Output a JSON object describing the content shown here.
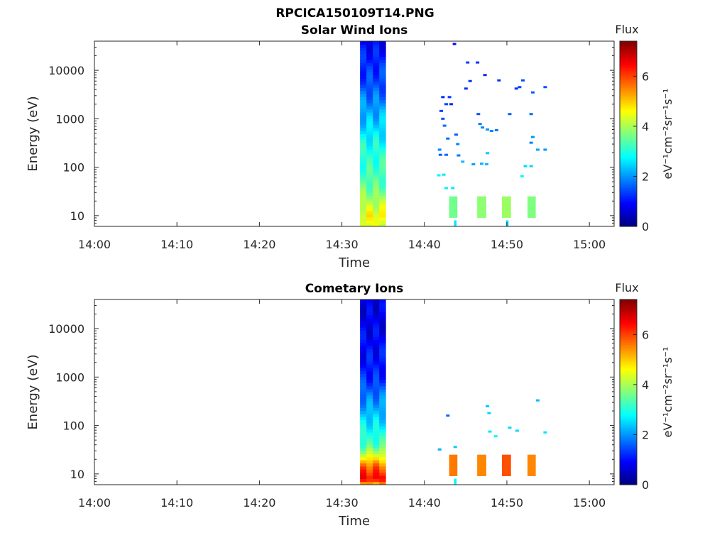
{
  "figure_title": "RPCICA150109T14.PNG",
  "colormap": [
    "#00007f",
    "#0000ff",
    "#007fff",
    "#00ffff",
    "#7fff7f",
    "#ffff00",
    "#ff7f00",
    "#ff0000",
    "#7f0000"
  ],
  "chart_data": [
    {
      "type": "heatmap",
      "title": "Solar Wind Ions",
      "xlabel": "Time",
      "ylabel": "Energy (eV)",
      "xticks": [
        "14:00",
        "14:10",
        "14:20",
        "14:30",
        "14:40",
        "14:50",
        "15:00"
      ],
      "xlim_minutes": [
        0,
        63
      ],
      "yscale": "log",
      "ylim": [
        6,
        40000
      ],
      "yticks": [
        10,
        100,
        1000,
        10000
      ],
      "ytick_labels": [
        "10",
        "100",
        "1000",
        "10000"
      ],
      "colorbar": {
        "label": "Flux",
        "units": "eV⁻¹cm⁻²sr⁻¹s⁻¹",
        "range": [
          0,
          7.4
        ],
        "ticks": [
          0,
          2,
          4,
          6
        ],
        "tick_labels": [
          "0",
          "2",
          "4",
          "6"
        ]
      },
      "cells": [
        {
          "t0": 32.2,
          "t1": 35.3,
          "e0": 6,
          "e1": 40000,
          "flux_profile": [
            [
              40000,
              0.9
            ],
            [
              5000,
              1.5
            ],
            [
              1000,
              2.3
            ],
            [
              300,
              2.9
            ],
            [
              100,
              3.2
            ],
            [
              40,
              3.5
            ],
            [
              20,
              4.0
            ],
            [
              10,
              4.6
            ],
            [
              6,
              4.4
            ]
          ]
        },
        {
          "t0": 43.0,
          "t1": 44.0,
          "e0": 9,
          "e1": 25,
          "flux": 3.6
        },
        {
          "t0": 46.4,
          "t1": 47.5,
          "e0": 9,
          "e1": 25,
          "flux": 3.8
        },
        {
          "t0": 49.4,
          "t1": 50.5,
          "e0": 9,
          "e1": 25,
          "flux": 3.9
        },
        {
          "t0": 52.5,
          "t1": 53.5,
          "e0": 9,
          "e1": 25,
          "flux": 3.7
        },
        {
          "t0": 43.6,
          "t1": 43.9,
          "e0": 6,
          "e1": 8,
          "flux": 2.6
        },
        {
          "t0": 49.9,
          "t1": 50.2,
          "e0": 6,
          "e1": 8,
          "flux": 2.6
        }
      ],
      "points": [
        {
          "t": 43.6,
          "e": 35000,
          "flux": 1.0
        },
        {
          "t": 45.2,
          "e": 14500,
          "flux": 1.4
        },
        {
          "t": 46.4,
          "e": 14500,
          "flux": 1.3
        },
        {
          "t": 47.3,
          "e": 8000,
          "flux": 1.2
        },
        {
          "t": 45.5,
          "e": 6000,
          "flux": 1.3
        },
        {
          "t": 49.0,
          "e": 6200,
          "flux": 1.3
        },
        {
          "t": 51.9,
          "e": 6200,
          "flux": 1.5
        },
        {
          "t": 51.5,
          "e": 4500,
          "flux": 1.4
        },
        {
          "t": 54.6,
          "e": 4500,
          "flux": 1.5
        },
        {
          "t": 45.0,
          "e": 4200,
          "flux": 1.3
        },
        {
          "t": 51.1,
          "e": 4200,
          "flux": 1.3
        },
        {
          "t": 53.1,
          "e": 3500,
          "flux": 1.6
        },
        {
          "t": 42.2,
          "e": 2800,
          "flux": 1.2
        },
        {
          "t": 43.0,
          "e": 2800,
          "flux": 1.3
        },
        {
          "t": 42.6,
          "e": 2000,
          "flux": 1.4
        },
        {
          "t": 43.2,
          "e": 2000,
          "flux": 1.2
        },
        {
          "t": 42.0,
          "e": 1450,
          "flux": 1.4
        },
        {
          "t": 46.5,
          "e": 1250,
          "flux": 1.5
        },
        {
          "t": 50.3,
          "e": 1250,
          "flux": 1.6
        },
        {
          "t": 52.9,
          "e": 1250,
          "flux": 1.7
        },
        {
          "t": 42.2,
          "e": 1000,
          "flux": 1.5
        },
        {
          "t": 46.7,
          "e": 780,
          "flux": 1.8
        },
        {
          "t": 42.4,
          "e": 720,
          "flux": 1.7
        },
        {
          "t": 47.0,
          "e": 660,
          "flux": 1.9
        },
        {
          "t": 47.6,
          "e": 600,
          "flux": 2.0
        },
        {
          "t": 48.1,
          "e": 560,
          "flux": 1.9
        },
        {
          "t": 48.7,
          "e": 580,
          "flux": 1.8
        },
        {
          "t": 43.8,
          "e": 470,
          "flux": 1.6
        },
        {
          "t": 42.8,
          "e": 390,
          "flux": 1.7
        },
        {
          "t": 53.1,
          "e": 420,
          "flux": 2.0
        },
        {
          "t": 52.9,
          "e": 320,
          "flux": 1.9
        },
        {
          "t": 44.0,
          "e": 300,
          "flux": 1.9
        },
        {
          "t": 41.8,
          "e": 230,
          "flux": 1.9
        },
        {
          "t": 53.7,
          "e": 230,
          "flux": 2.1
        },
        {
          "t": 54.6,
          "e": 230,
          "flux": 2.0
        },
        {
          "t": 41.9,
          "e": 180,
          "flux": 1.6
        },
        {
          "t": 42.6,
          "e": 180,
          "flux": 1.7
        },
        {
          "t": 44.1,
          "e": 175,
          "flux": 1.8
        },
        {
          "t": 47.6,
          "e": 195,
          "flux": 2.4
        },
        {
          "t": 44.6,
          "e": 130,
          "flux": 2.3
        },
        {
          "t": 45.9,
          "e": 115,
          "flux": 2.1
        },
        {
          "t": 46.9,
          "e": 118,
          "flux": 2.2
        },
        {
          "t": 47.5,
          "e": 115,
          "flux": 2.3
        },
        {
          "t": 52.2,
          "e": 105,
          "flux": 2.5
        },
        {
          "t": 52.9,
          "e": 105,
          "flux": 2.5
        },
        {
          "t": 41.7,
          "e": 68,
          "flux": 2.7
        },
        {
          "t": 42.3,
          "e": 70,
          "flux": 2.6
        },
        {
          "t": 51.8,
          "e": 65,
          "flux": 2.8
        },
        {
          "t": 42.6,
          "e": 37,
          "flux": 2.7
        },
        {
          "t": 43.4,
          "e": 37,
          "flux": 2.6
        }
      ]
    },
    {
      "type": "heatmap",
      "title": "Cometary Ions",
      "xlabel": "Time",
      "ylabel": "Energy (eV)",
      "xticks": [
        "14:00",
        "14:10",
        "14:20",
        "14:30",
        "14:40",
        "14:50",
        "15:00"
      ],
      "xlim_minutes": [
        0,
        63
      ],
      "yscale": "log",
      "ylim": [
        6,
        40000
      ],
      "yticks": [
        10,
        100,
        1000,
        10000
      ],
      "ytick_labels": [
        "10",
        "100",
        "1000",
        "10000"
      ],
      "colorbar": {
        "label": "Flux",
        "units": "eV⁻¹cm⁻²sr⁻¹s⁻¹",
        "range": [
          0,
          7.4
        ],
        "ticks": [
          0,
          2,
          4,
          6
        ],
        "tick_labels": [
          "0",
          "2",
          "4",
          "6"
        ]
      },
      "cells": [
        {
          "t0": 32.2,
          "t1": 35.3,
          "e0": 6,
          "e1": 40000,
          "flux_profile": [
            [
              40000,
              0.7
            ],
            [
              5000,
              0.9
            ],
            [
              1000,
              1.2
            ],
            [
              300,
              2.0
            ],
            [
              100,
              2.7
            ],
            [
              40,
              3.3
            ],
            [
              25,
              4.3
            ],
            [
              14,
              5.8
            ],
            [
              8,
              6.5
            ],
            [
              6,
              5.0
            ]
          ]
        },
        {
          "t0": 43.0,
          "t1": 44.0,
          "e0": 9,
          "e1": 25,
          "flux": 5.6
        },
        {
          "t0": 46.4,
          "t1": 47.5,
          "e0": 9,
          "e1": 25,
          "flux": 5.5
        },
        {
          "t0": 49.4,
          "t1": 50.5,
          "e0": 9,
          "e1": 25,
          "flux": 5.9
        },
        {
          "t0": 52.5,
          "t1": 53.5,
          "e0": 9,
          "e1": 25,
          "flux": 5.5
        },
        {
          "t0": 43.6,
          "t1": 43.9,
          "e0": 6,
          "e1": 8,
          "flux": 2.7
        }
      ],
      "points": [
        {
          "t": 42.8,
          "e": 160,
          "flux": 1.7
        },
        {
          "t": 47.6,
          "e": 250,
          "flux": 2.4
        },
        {
          "t": 47.8,
          "e": 180,
          "flux": 2.5
        },
        {
          "t": 53.7,
          "e": 330,
          "flux": 2.3
        },
        {
          "t": 47.9,
          "e": 75,
          "flux": 2.6
        },
        {
          "t": 48.6,
          "e": 60,
          "flux": 2.7
        },
        {
          "t": 50.3,
          "e": 90,
          "flux": 2.5
        },
        {
          "t": 51.2,
          "e": 78,
          "flux": 2.5
        },
        {
          "t": 54.6,
          "e": 72,
          "flux": 2.6
        },
        {
          "t": 41.8,
          "e": 32,
          "flux": 2.2
        },
        {
          "t": 43.7,
          "e": 36,
          "flux": 2.4
        }
      ]
    }
  ]
}
